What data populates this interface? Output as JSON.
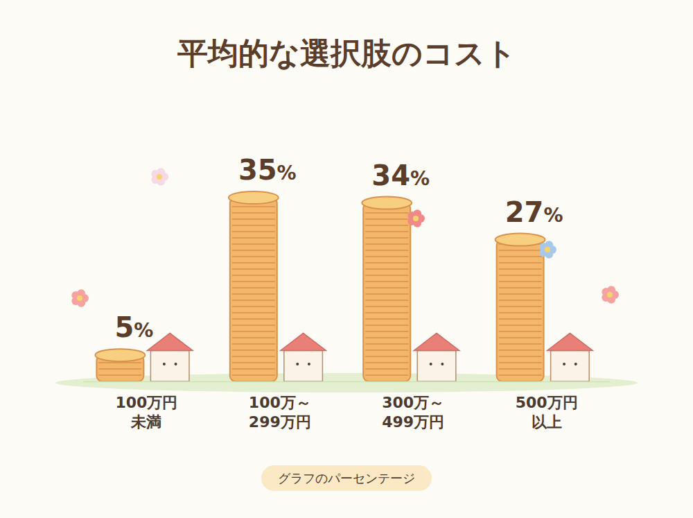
{
  "chart_data": {
    "type": "bar",
    "title": "平均的な選択肢のコスト",
    "categories": [
      "100万円\n未満",
      "100万～\n299万円",
      "300万～\n499万円",
      "500万円\n以上"
    ],
    "values": [
      5,
      35,
      34,
      27
    ],
    "value_labels": [
      "5%",
      "35%",
      "34%",
      "27%"
    ],
    "data_labels": true,
    "tick_labels": "x",
    "color": "#f4b66a",
    "annotations": [
      "グラフのパーセンテージ"
    ]
  }
}
